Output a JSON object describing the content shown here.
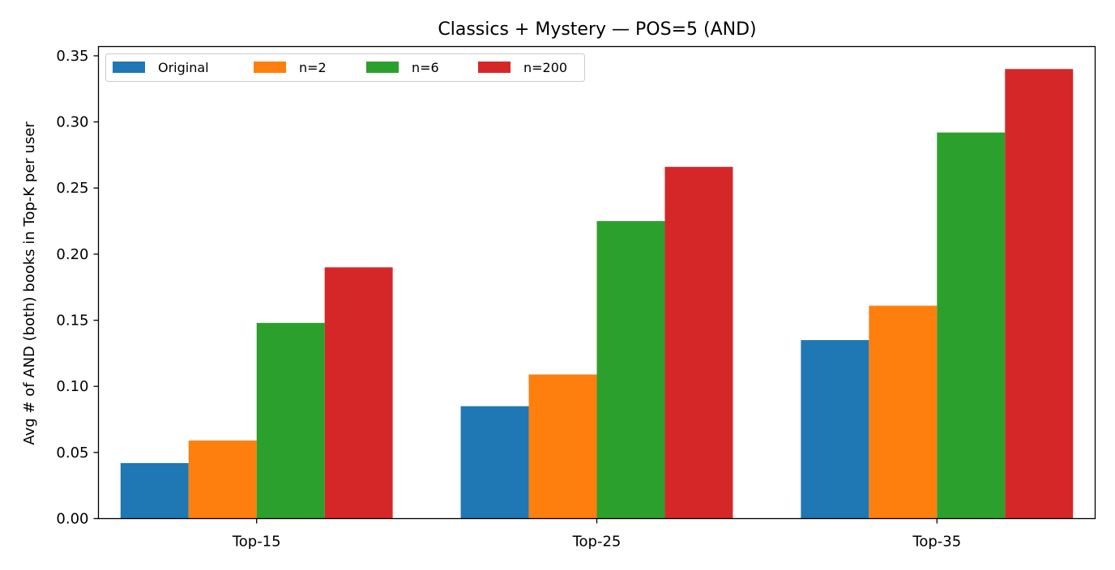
{
  "chart_data": {
    "type": "bar",
    "title": "Classics + Mystery — POS=5 (AND)",
    "xlabel": "",
    "ylabel": "Avg # of AND (both) books in Top-K per user",
    "categories": [
      "Top-15",
      "Top-25",
      "Top-35"
    ],
    "series": [
      {
        "name": "Original",
        "color": "#1f77b4",
        "values": [
          0.042,
          0.085,
          0.135
        ]
      },
      {
        "name": "n=2",
        "color": "#ff7f0e",
        "values": [
          0.059,
          0.109,
          0.161
        ]
      },
      {
        "name": "n=6",
        "color": "#2ca02c",
        "values": [
          0.148,
          0.225,
          0.292
        ]
      },
      {
        "name": "n=200",
        "color": "#d62728",
        "values": [
          0.19,
          0.266,
          0.34
        ]
      }
    ],
    "ylim": [
      0,
      0.357
    ],
    "yticks": [
      "0.00",
      "0.05",
      "0.10",
      "0.15",
      "0.20",
      "0.25",
      "0.30",
      "0.35"
    ],
    "grid": false,
    "legend_position": "top-left"
  }
}
